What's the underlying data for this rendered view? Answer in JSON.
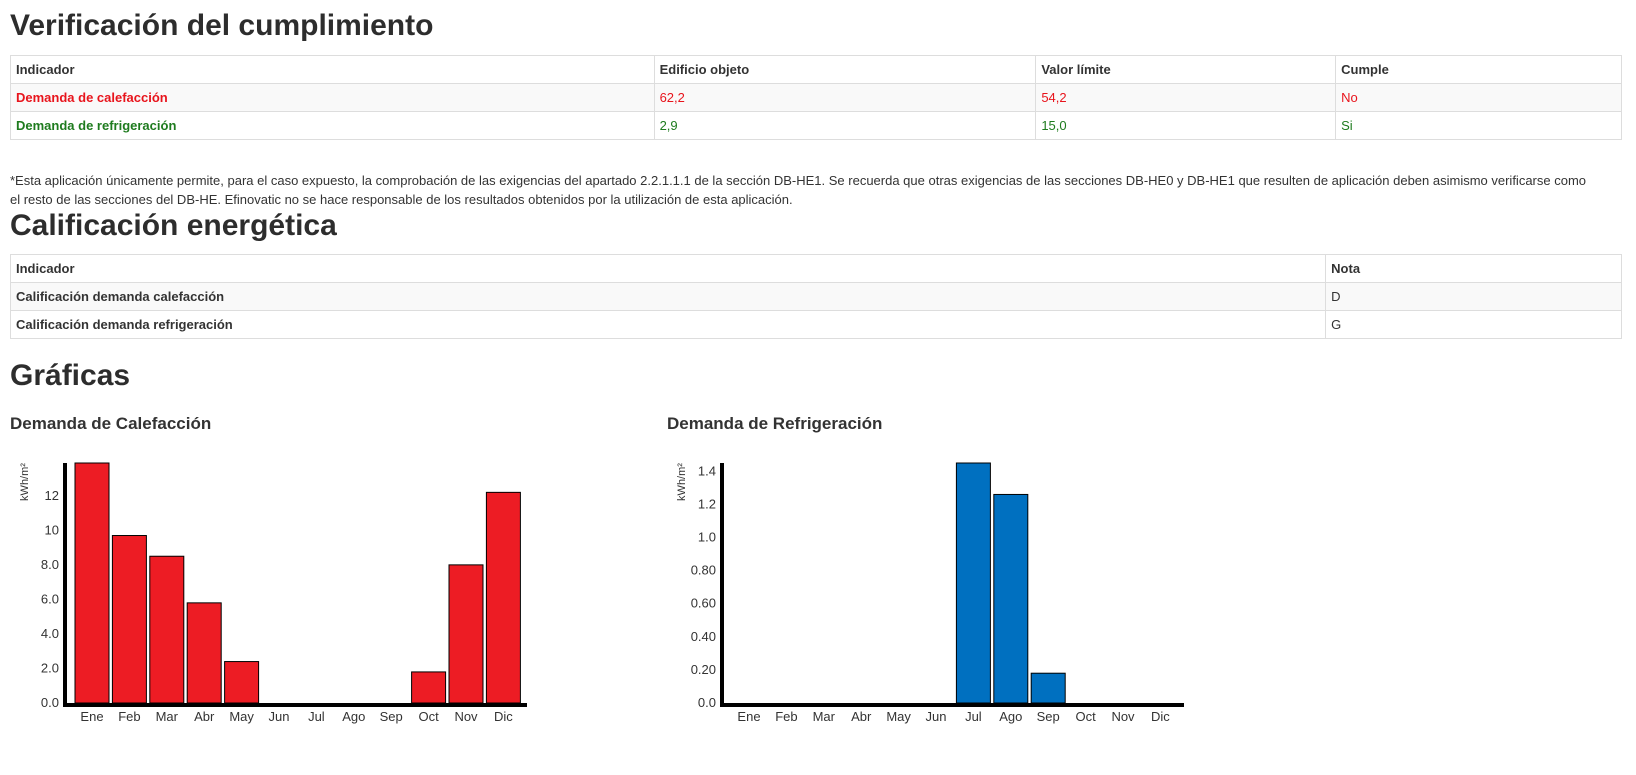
{
  "verificacion": {
    "title": "Verificación del cumplimiento",
    "headers": [
      "Indicador",
      "Edificio objeto",
      "Valor límite",
      "Cumple"
    ],
    "rows": [
      {
        "indicador": "Demanda de calefacción",
        "edificio": "62,2",
        "limite": "54,2",
        "cumple": "No",
        "status": "fail"
      },
      {
        "indicador": "Demanda de refrigeración",
        "edificio": "2,9",
        "limite": "15,0",
        "cumple": "Si",
        "status": "pass"
      }
    ],
    "disclaimer": "*Esta aplicación únicamente permite, para el caso expuesto, la comprobación de las exigencias del apartado 2.2.1.1.1 de la sección DB-HE1. Se recuerda que otras exigencias de las secciones DB-HE0 y DB-HE1 que resulten de aplicación deben asimismo verificarse como el resto de las secciones del DB-HE. Efinovatic no se hace responsable de los resultados obtenidos por la utilización de esta aplicación."
  },
  "calificacion": {
    "title": "Calificación energética",
    "headers": [
      "Indicador",
      "Nota"
    ],
    "rows": [
      {
        "indicador": "Calificación demanda calefacción",
        "nota": "D"
      },
      {
        "indicador": "Calificación demanda refrigeración",
        "nota": "G"
      }
    ]
  },
  "graficas": {
    "title": "Gráficas"
  },
  "colors": {
    "fail": "#e8141c",
    "pass": "#1e7b1e",
    "heating_bar": "#ed1c24",
    "cooling_bar": "#0070c0"
  },
  "chart_data": [
    {
      "type": "bar",
      "title": "Demanda de Calefacción",
      "ylabel": "kWh/m²",
      "categories": [
        "Ene",
        "Feb",
        "Mar",
        "Abr",
        "May",
        "Jun",
        "Jul",
        "Ago",
        "Sep",
        "Oct",
        "Nov",
        "Dic"
      ],
      "values": [
        13.9,
        9.7,
        8.5,
        5.8,
        2.4,
        0,
        0,
        0,
        0,
        1.8,
        8.0,
        12.2
      ],
      "ylim": [
        0,
        13.9
      ],
      "yticks": [
        "0.0",
        "2.0",
        "4.0",
        "6.0",
        "8.0",
        "10",
        "12"
      ],
      "ytick_values": [
        0,
        2,
        4,
        6,
        8,
        10,
        12
      ],
      "color": "#ed1c24"
    },
    {
      "type": "bar",
      "title": "Demanda de Refrigeración",
      "ylabel": "kWh/m²",
      "categories": [
        "Ene",
        "Feb",
        "Mar",
        "Abr",
        "May",
        "Jun",
        "Jul",
        "Ago",
        "Sep",
        "Oct",
        "Nov",
        "Dic"
      ],
      "values": [
        0,
        0,
        0,
        0,
        0,
        0,
        1.45,
        1.26,
        0.18,
        0,
        0,
        0
      ],
      "ylim": [
        0,
        1.45
      ],
      "yticks": [
        "0.0",
        "0.20",
        "0.40",
        "0.60",
        "0.80",
        "1.0",
        "1.2",
        "1.4"
      ],
      "ytick_values": [
        0,
        0.2,
        0.4,
        0.6,
        0.8,
        1.0,
        1.2,
        1.4
      ],
      "color": "#0070c0"
    }
  ]
}
